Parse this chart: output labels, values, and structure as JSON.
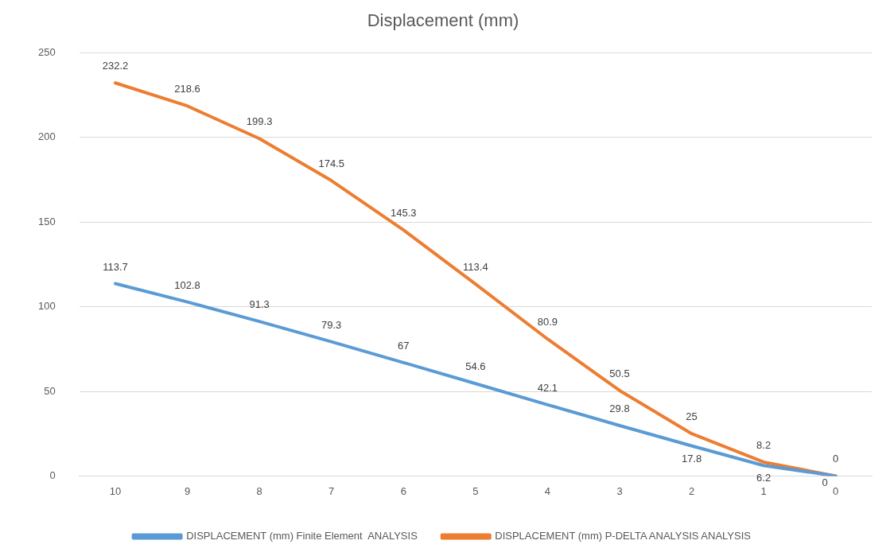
{
  "chart_data": {
    "type": "line",
    "title": "Displacement (mm)",
    "categories": [
      "10",
      "9",
      "8",
      "7",
      "6",
      "5",
      "4",
      "3",
      "2",
      "1",
      "0"
    ],
    "series": [
      {
        "name": "DISPLACEMENT (mm) Finite Element  ANALYSIS",
        "color": "#5b9bd5",
        "values": [
          113.7,
          102.8,
          91.3,
          79.3,
          67,
          54.6,
          42.1,
          29.8,
          17.8,
          6.2,
          0
        ]
      },
      {
        "name": "DISPLACEMENT (mm) P-DELTA ANALYSIS ANALYSIS",
        "color": "#ed7d31",
        "values": [
          232.2,
          218.6,
          199.3,
          174.5,
          145.3,
          113.4,
          80.9,
          50.5,
          25,
          8.2,
          0
        ]
      }
    ],
    "ylim": [
      0,
      250
    ],
    "yticks": [
      0,
      50,
      100,
      150,
      200,
      250
    ],
    "grid": "y",
    "legend": "bottom",
    "data_labels": true,
    "marker": "none",
    "line_style": "solid"
  }
}
